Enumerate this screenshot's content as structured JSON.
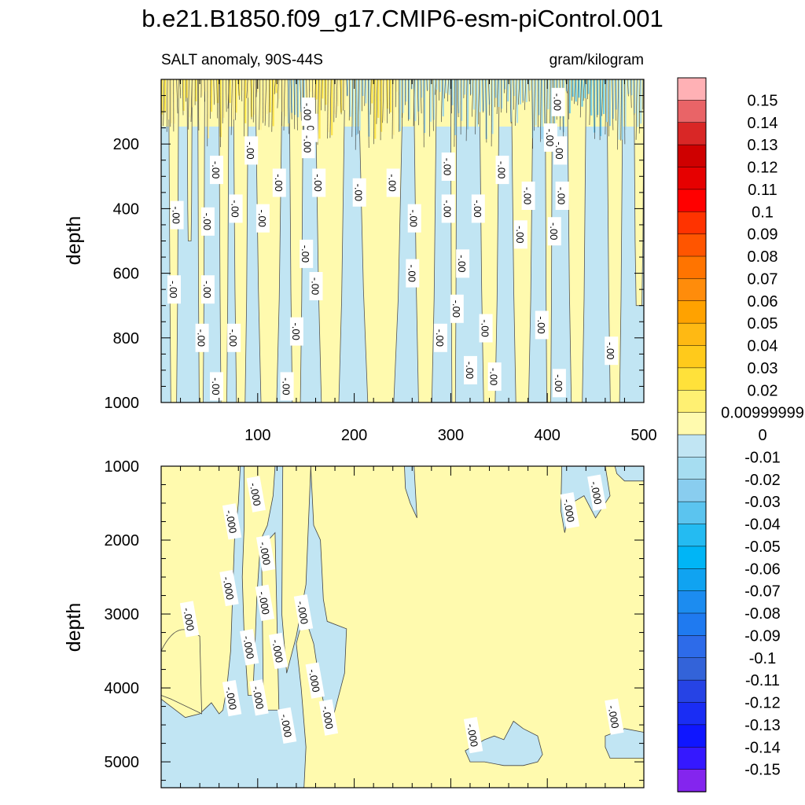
{
  "figure": {
    "title": "b.e21.B1850.f09_g17.CMIP6-esm-piControl.001",
    "left_subtitle": "SALT anomaly, 90S-44S",
    "right_subtitle": "gram/kilogram"
  },
  "chart_data": {
    "type": "contour",
    "variable": "SALT anomaly",
    "region": "90S-44S",
    "units": "gram/kilogram",
    "panels": [
      {
        "name": "upper",
        "ylabel": "depth",
        "ylim": [
          1000,
          0
        ],
        "xlim": [
          0,
          500
        ],
        "yticks": [
          200,
          400,
          600,
          800,
          1000
        ],
        "xticks": [
          100,
          200,
          300,
          400,
          500
        ],
        "contour_labels": [
          {
            "text": "-.00",
            "x": 155,
            "y": 150
          },
          {
            "text": "-.00",
            "x": 152,
            "y": 100
          },
          {
            "text": "-.00",
            "x": 152,
            "y": 200
          },
          {
            "text": "-.00",
            "x": 93,
            "y": 220
          },
          {
            "text": "-.00",
            "x": 57,
            "y": 280
          },
          {
            "text": "-.00",
            "x": 122,
            "y": 320
          },
          {
            "text": "-.00",
            "x": 163,
            "y": 320
          },
          {
            "text": "-.00",
            "x": 205,
            "y": 350
          },
          {
            "text": "-.00",
            "x": 240,
            "y": 320
          },
          {
            "text": "-.00",
            "x": 16,
            "y": 420
          },
          {
            "text": "-.00",
            "x": 48,
            "y": 440
          },
          {
            "text": "-.00",
            "x": 77,
            "y": 400
          },
          {
            "text": "-.00",
            "x": 105,
            "y": 430
          },
          {
            "text": "-.00",
            "x": 150,
            "y": 540
          },
          {
            "text": "-.00",
            "x": 262,
            "y": 430
          },
          {
            "text": "-.00",
            "x": 297,
            "y": 400
          },
          {
            "text": "-.00",
            "x": 297,
            "y": 270
          },
          {
            "text": "-.00",
            "x": 328,
            "y": 400
          },
          {
            "text": "-.00",
            "x": 353,
            "y": 280
          },
          {
            "text": "-.00",
            "x": 380,
            "y": 360
          },
          {
            "text": "-.00",
            "x": 403,
            "y": 180
          },
          {
            "text": "-.00",
            "x": 407,
            "y": 470
          },
          {
            "text": "-.00",
            "x": 372,
            "y": 480
          },
          {
            "text": "-.00",
            "x": 411,
            "y": 70
          },
          {
            "text": "-.00",
            "x": 413,
            "y": 220
          },
          {
            "text": "-.00",
            "x": 415,
            "y": 360
          },
          {
            "text": "-.00",
            "x": 13,
            "y": 650
          },
          {
            "text": "-.00",
            "x": 48,
            "y": 650
          },
          {
            "text": "-.00",
            "x": 160,
            "y": 640
          },
          {
            "text": "-.00",
            "x": 260,
            "y": 600
          },
          {
            "text": "-.00",
            "x": 312,
            "y": 570
          },
          {
            "text": "-.00",
            "x": 306,
            "y": 710
          },
          {
            "text": "-.00",
            "x": 42,
            "y": 800
          },
          {
            "text": "-.00",
            "x": 75,
            "y": 800
          },
          {
            "text": "-.00",
            "x": 140,
            "y": 780
          },
          {
            "text": "-.00",
            "x": 289,
            "y": 800
          },
          {
            "text": "-.00",
            "x": 336,
            "y": 770
          },
          {
            "text": "-.00",
            "x": 394,
            "y": 760
          },
          {
            "text": "-.00",
            "x": 466,
            "y": 840
          },
          {
            "text": "-.00",
            "x": 320,
            "y": 900
          },
          {
            "text": "-.00",
            "x": 345,
            "y": 920
          },
          {
            "text": "-.00",
            "x": 412,
            "y": 940
          },
          {
            "text": "-.00",
            "x": 57,
            "y": 950
          },
          {
            "text": "-.00",
            "x": 130,
            "y": 950
          }
        ]
      },
      {
        "name": "lower",
        "ylabel": "depth",
        "ylim": [
          5350,
          1000
        ],
        "xlim": [
          0,
          500
        ],
        "yticks": [
          1000,
          2000,
          3000,
          4000,
          5000
        ],
        "contour_labels": [
          {
            "text": "-.000",
            "x": 98,
            "y": 1380
          },
          {
            "text": "-.000",
            "x": 73,
            "y": 1750
          },
          {
            "text": "-.000",
            "x": 108,
            "y": 2180
          },
          {
            "text": "-.000",
            "x": 70,
            "y": 2650
          },
          {
            "text": "-.000",
            "x": 107,
            "y": 2850
          },
          {
            "text": "-.000",
            "x": 29,
            "y": 3070
          },
          {
            "text": "-.000",
            "x": 147,
            "y": 2980
          },
          {
            "text": "-.000",
            "x": 91,
            "y": 3450
          },
          {
            "text": "-.000",
            "x": 121,
            "y": 3500
          },
          {
            "text": "-.000",
            "x": 159,
            "y": 3900
          },
          {
            "text": "-.000",
            "x": 73,
            "y": 4140
          },
          {
            "text": "-.000",
            "x": 101,
            "y": 4130
          },
          {
            "text": "-.000",
            "x": 130,
            "y": 4510
          },
          {
            "text": "-.000",
            "x": 173,
            "y": 4400
          },
          {
            "text": "-.000",
            "x": 423,
            "y": 1600
          },
          {
            "text": "-.000",
            "x": 451,
            "y": 1360
          },
          {
            "text": "-.000",
            "x": 323,
            "y": 4640
          },
          {
            "text": "-.000",
            "x": 469,
            "y": 4390
          }
        ]
      }
    ],
    "colorbar": {
      "levels": [
        "0.15",
        "0.14",
        "0.13",
        "0.12",
        "0.11",
        "0.1",
        "0.09",
        "0.08",
        "0.07",
        "0.06",
        "0.05",
        "0.04",
        "0.03",
        "0.02",
        "0.00999999",
        "0",
        "-0.01",
        "-0.02",
        "-0.03",
        "-0.04",
        "-0.05",
        "-0.06",
        "-0.07",
        "-0.08",
        "-0.09",
        "-0.1",
        "-0.11",
        "-0.12",
        "-0.13",
        "-0.14",
        "-0.15"
      ],
      "colors": [
        "#FFB1B5",
        "#E96467",
        "#D92726",
        "#CF0000",
        "#E60000",
        "#FF0000",
        "#FF3300",
        "#FF5500",
        "#FF7400",
        "#FF8C0B",
        "#FFA200",
        "#FFB913",
        "#FFCA1B",
        "#FFE13A",
        "#FFF072",
        "#FFFAAE",
        "#C1E5F3",
        "#A6DDF1",
        "#89CDEF",
        "#5BC4EF",
        "#24BBF2",
        "#00B5F6",
        "#10A3F1",
        "#1C8CF0",
        "#1F7AF0",
        "#2D6BE9",
        "#3363D9",
        "#2643E5",
        "#1A2DF4",
        "#0F16FF",
        "#3518FF",
        "#8425EE"
      ]
    },
    "colors": {
      "positive_fill": "#FFFAAE",
      "negative_fill": "#C1E5F3",
      "strong_positive": "#FFE13A",
      "strong_negative": "#5BC4EF"
    }
  }
}
